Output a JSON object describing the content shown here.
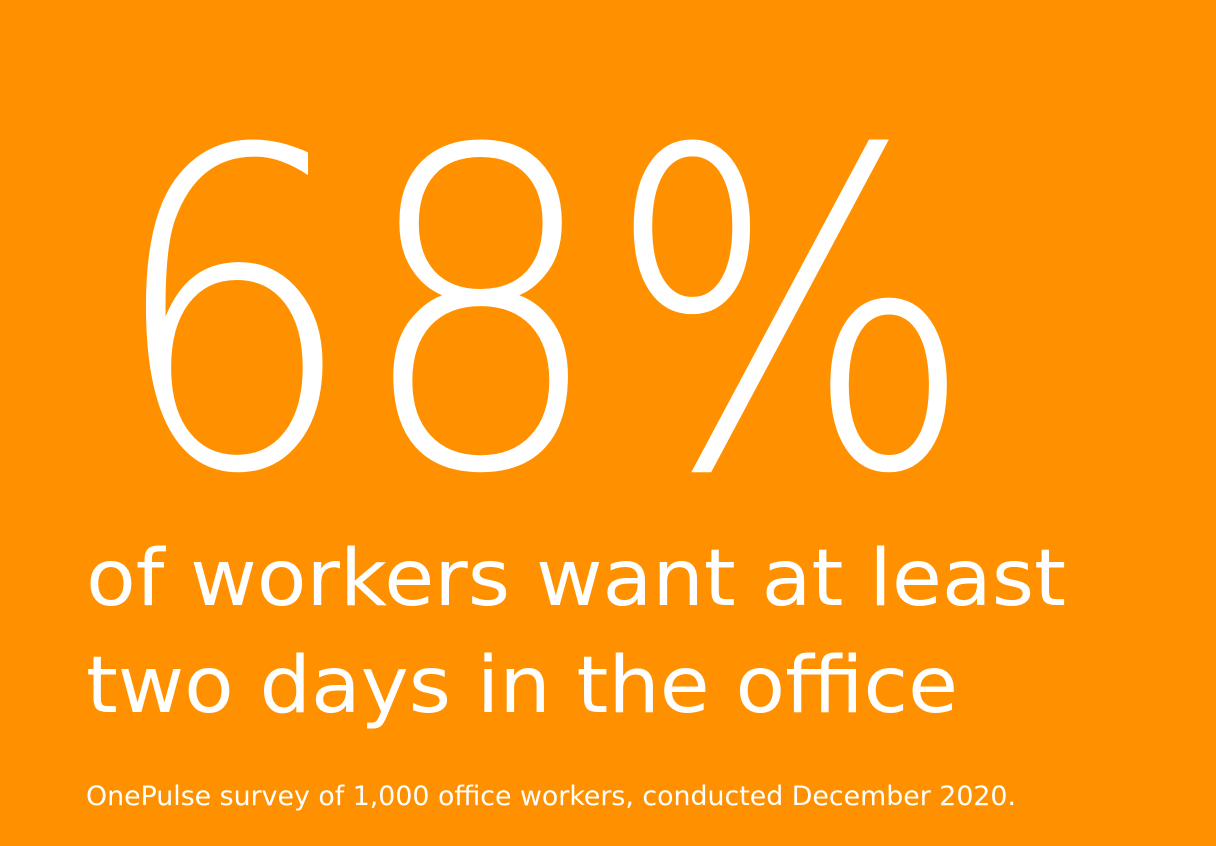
{
  "stat": "68%",
  "headline": [
    "of workers want at least",
    "two days in the office"
  ],
  "source": "OnePulse survey of 1,000 office workers, conducted December 2020."
}
